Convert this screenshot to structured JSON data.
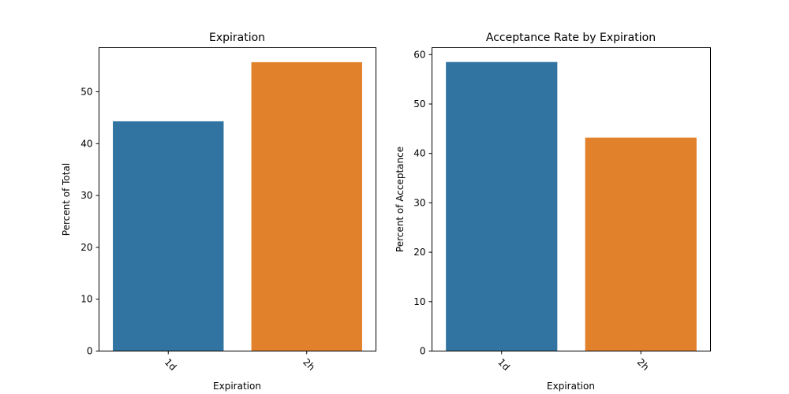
{
  "colors": {
    "blue": "#3274a1",
    "orange": "#e1812c"
  },
  "chart_data": [
    {
      "type": "bar",
      "title": "Expiration",
      "xlabel": "Expiration",
      "ylabel": "Percent of Total",
      "categories": [
        "1d",
        "2h"
      ],
      "values": [
        44.3,
        55.7
      ],
      "ylim": [
        0,
        58.5
      ],
      "yticks": [
        0,
        10,
        20,
        30,
        40,
        50
      ],
      "ytick_labels": [
        "0",
        "10",
        "20",
        "30",
        "40",
        "50"
      ],
      "grid": false
    },
    {
      "type": "bar",
      "title": "Acceptance Rate by Expiration",
      "xlabel": "Expiration",
      "ylabel": "Percent of Acceptance",
      "categories": [
        "1d",
        "2h"
      ],
      "values": [
        58.5,
        43.2
      ],
      "ylim": [
        0,
        61.4
      ],
      "yticks": [
        0,
        10,
        20,
        30,
        40,
        50,
        60
      ],
      "ytick_labels": [
        "0",
        "10",
        "20",
        "30",
        "40",
        "50",
        "60"
      ],
      "grid": false
    }
  ]
}
